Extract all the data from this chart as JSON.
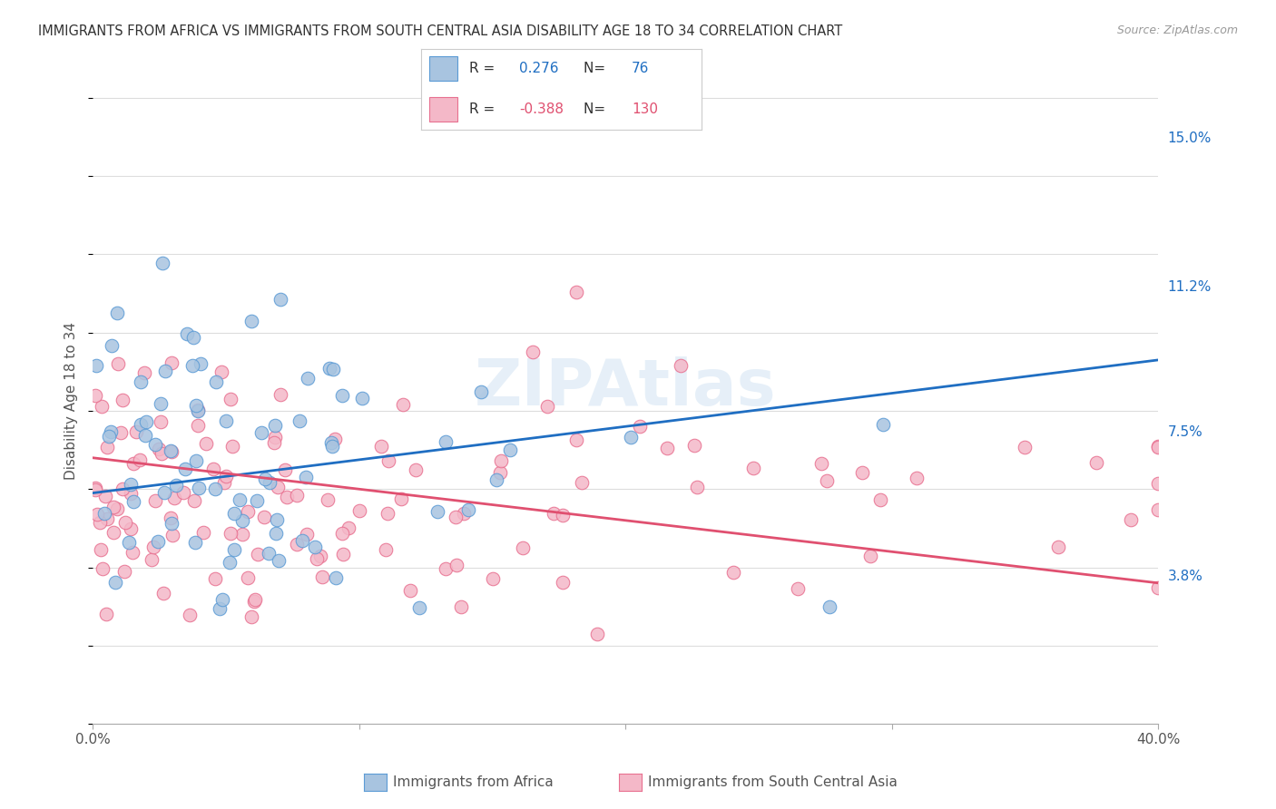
{
  "title": "IMMIGRANTS FROM AFRICA VS IMMIGRANTS FROM SOUTH CENTRAL ASIA DISABILITY AGE 18 TO 34 CORRELATION CHART",
  "source": "Source: ZipAtlas.com",
  "ylabel": "Disability Age 18 to 34",
  "x_min": 0.0,
  "x_max": 0.4,
  "y_min": 0.0,
  "y_max": 0.165,
  "y_tick_labels_right": [
    "15.0%",
    "11.2%",
    "7.5%",
    "3.8%"
  ],
  "y_tick_values_right": [
    0.15,
    0.112,
    0.075,
    0.038
  ],
  "watermark": "ZIPAtlas",
  "africa_color": "#a8c4e0",
  "africa_edge_color": "#5b9bd5",
  "africa_line_color": "#1f6ec2",
  "sca_color": "#f4b8c8",
  "sca_edge_color": "#e87090",
  "sca_line_color": "#e05070",
  "africa_R": 0.276,
  "africa_N": 76,
  "sca_R": -0.388,
  "sca_N": 130,
  "africa_line_x": [
    0.0,
    0.4
  ],
  "africa_line_y": [
    0.059,
    0.093
  ],
  "sca_line_x": [
    0.0,
    0.4
  ],
  "sca_line_y": [
    0.068,
    0.036
  ],
  "background_color": "#ffffff",
  "grid_color": "#dddddd",
  "legend_label1": "Immigrants from Africa",
  "legend_label2": "Immigrants from South Central Asia"
}
